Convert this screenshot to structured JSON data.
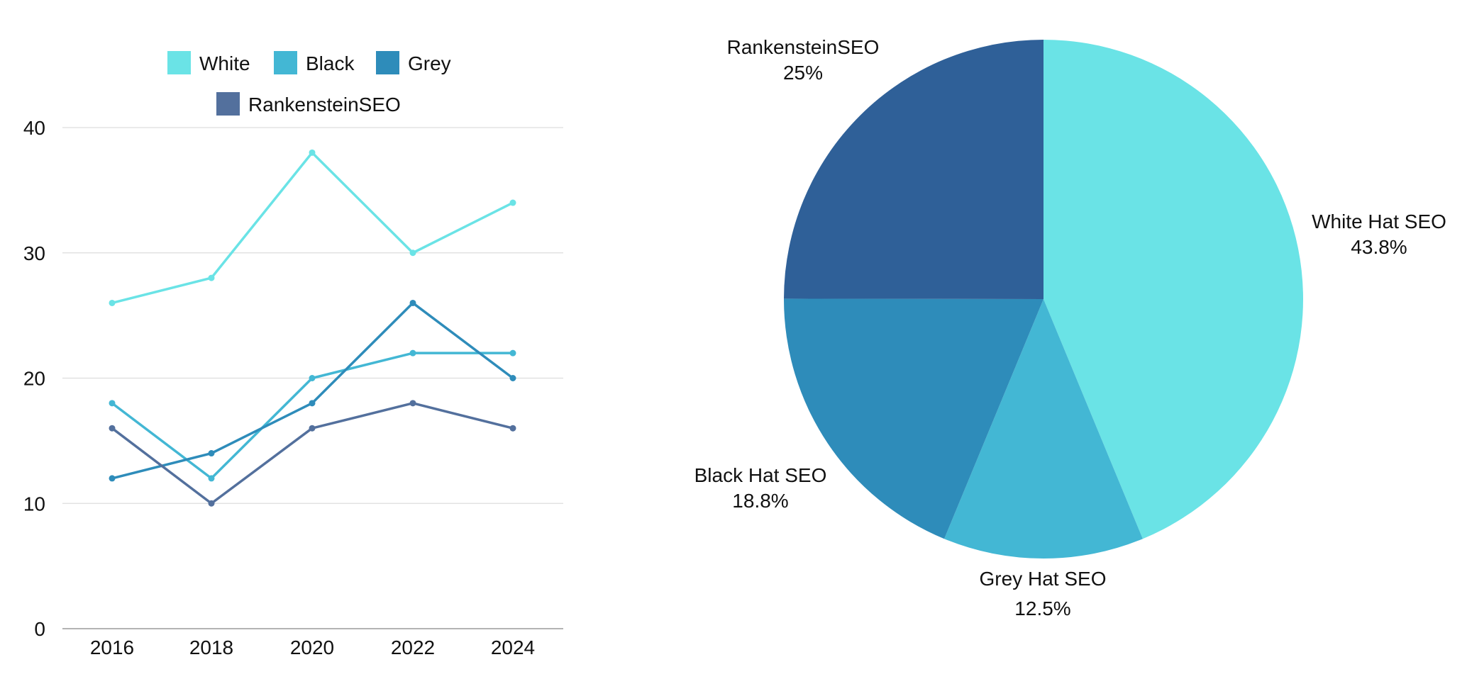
{
  "chart_data": [
    {
      "type": "line",
      "categories": [
        "2016",
        "2018",
        "2020",
        "2022",
        "2024"
      ],
      "series": [
        {
          "name": "White",
          "values": [
            26,
            28,
            38,
            30,
            34
          ],
          "color": "#6AE3E6"
        },
        {
          "name": "Black",
          "values": [
            18,
            12,
            20,
            22,
            22
          ],
          "color": "#43B7D4"
        },
        {
          "name": "Grey",
          "values": [
            12,
            14,
            18,
            26,
            20
          ],
          "color": "#2E8CBA"
        },
        {
          "name": "RankensteinSEO",
          "values": [
            16,
            10,
            16,
            18,
            16
          ],
          "color": "#53709D"
        }
      ],
      "ylim": [
        0,
        40
      ],
      "yticks": [
        "0",
        "10",
        "20",
        "30",
        "40"
      ],
      "grid": true,
      "legend": "top"
    },
    {
      "type": "pie",
      "slices": [
        {
          "label": "White Hat SEO",
          "percent_label": "43.8%",
          "value": 43.8,
          "color": "#6AE3E6"
        },
        {
          "label": "Grey Hat SEO",
          "percent_label": "12.5%",
          "value": 12.5,
          "color": "#43B7D4"
        },
        {
          "label": "Black Hat SEO",
          "percent_label": "18.8%",
          "value": 18.8,
          "color": "#2E8CBA"
        },
        {
          "label": "RankensteinSEO",
          "percent_label": "25%",
          "value": 25,
          "color": "#2F6098"
        }
      ],
      "start_angle": "top",
      "direction": "clockwise",
      "labels": "outside"
    }
  ]
}
